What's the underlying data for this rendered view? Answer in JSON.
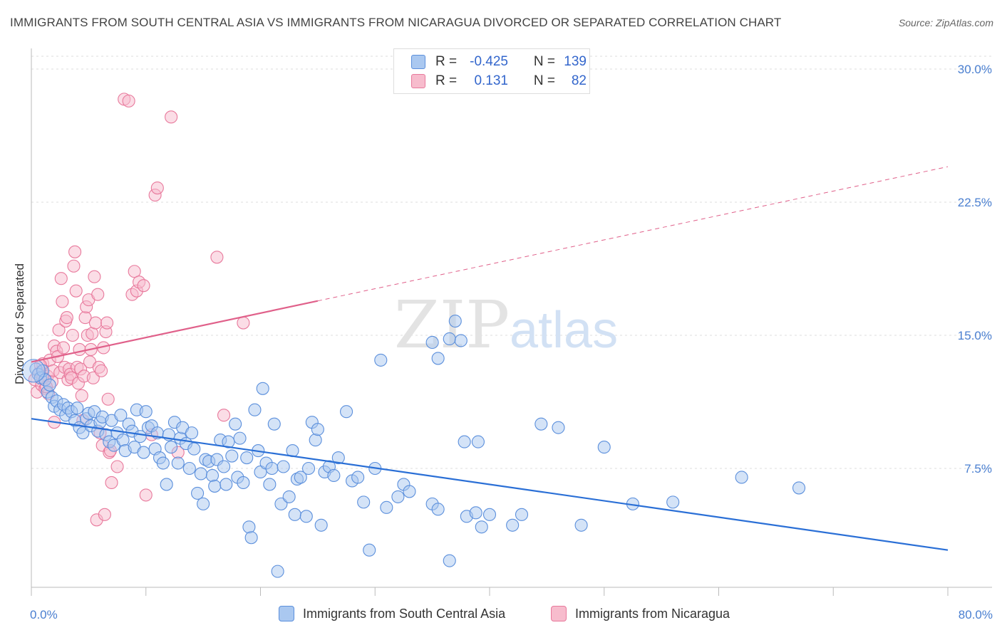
{
  "header": {
    "title": "IMMIGRANTS FROM SOUTH CENTRAL ASIA VS IMMIGRANTS FROM NICARAGUA DIVORCED OR SEPARATED CORRELATION CHART",
    "source": "Source: ZipAtlas.com"
  },
  "watermark": {
    "zip": "ZIP",
    "atlas": "atlas"
  },
  "legend_top": {
    "rows": [
      {
        "r_label": "R =",
        "r_value": "-0.425",
        "n_label": "N =",
        "n_value": "139"
      },
      {
        "r_label": "R =",
        "r_value": "0.131",
        "n_label": "N =",
        "n_value": "82"
      }
    ]
  },
  "legend_bottom": {
    "items": [
      {
        "label": "Immigrants from South Central Asia"
      },
      {
        "label": "Immigrants from Nicaragua"
      }
    ]
  },
  "colors": {
    "blue_fill": "#aac8f0",
    "blue_stroke": "#5b8fdc",
    "blue_line": "#2a6fd6",
    "pink_fill": "#f7bccd",
    "pink_stroke": "#e8799c",
    "pink_line": "#e0608a",
    "grid": "#dcdcdc",
    "tick_text": "#4a7fd0"
  },
  "chart_data": {
    "type": "scatter",
    "title": "IMMIGRANTS FROM SOUTH CENTRAL ASIA VS IMMIGRANTS FROM NICARAGUA DIVORCED OR SEPARATED CORRELATION CHART",
    "xlabel": "",
    "ylabel": "Divorced or Separated",
    "xlim": [
      0,
      80
    ],
    "ylim": [
      0,
      31
    ],
    "x_tick_labels": [
      "0.0%",
      "80.0%"
    ],
    "y_ticks": [
      7.5,
      15.0,
      22.5,
      30.0
    ],
    "y_tick_labels": [
      "7.5%",
      "15.0%",
      "22.5%",
      "30.0%"
    ],
    "grid": true,
    "legend_position": "top-center",
    "series": [
      {
        "name": "Immigrants from South Central Asia",
        "r": -0.425,
        "n": 139,
        "trend": {
          "x": [
            0,
            80
          ],
          "y": [
            10.3,
            2.9
          ],
          "dashed_from_x": null
        },
        "points": [
          [
            0.4,
            13.1
          ],
          [
            0.6,
            12.8
          ],
          [
            0.8,
            12.6
          ],
          [
            1.0,
            13.0
          ],
          [
            1.2,
            12.5
          ],
          [
            1.4,
            11.8
          ],
          [
            1.6,
            12.2
          ],
          [
            1.8,
            11.5
          ],
          [
            2.0,
            11.0
          ],
          [
            2.2,
            11.3
          ],
          [
            2.5,
            10.8
          ],
          [
            2.8,
            11.1
          ],
          [
            3.0,
            10.5
          ],
          [
            3.2,
            10.9
          ],
          [
            3.5,
            10.7
          ],
          [
            3.8,
            10.2
          ],
          [
            4.0,
            10.9
          ],
          [
            4.2,
            9.8
          ],
          [
            4.5,
            9.5
          ],
          [
            4.8,
            10.3
          ],
          [
            5.0,
            10.6
          ],
          [
            5.2,
            9.9
          ],
          [
            5.5,
            10.7
          ],
          [
            5.8,
            9.6
          ],
          [
            6.0,
            10.1
          ],
          [
            6.2,
            10.4
          ],
          [
            6.5,
            9.4
          ],
          [
            6.8,
            9.0
          ],
          [
            7.0,
            10.2
          ],
          [
            7.2,
            8.8
          ],
          [
            7.5,
            9.5
          ],
          [
            7.8,
            10.5
          ],
          [
            8.0,
            9.1
          ],
          [
            8.2,
            8.5
          ],
          [
            8.5,
            10.0
          ],
          [
            8.8,
            9.6
          ],
          [
            9.0,
            8.7
          ],
          [
            9.2,
            10.8
          ],
          [
            9.5,
            9.3
          ],
          [
            9.8,
            8.4
          ],
          [
            10.0,
            10.7
          ],
          [
            10.2,
            9.8
          ],
          [
            10.5,
            9.9
          ],
          [
            10.8,
            8.6
          ],
          [
            11.0,
            9.5
          ],
          [
            11.2,
            8.1
          ],
          [
            11.5,
            7.8
          ],
          [
            11.8,
            6.6
          ],
          [
            12.0,
            9.4
          ],
          [
            12.2,
            8.7
          ],
          [
            12.5,
            10.1
          ],
          [
            12.8,
            7.8
          ],
          [
            13.0,
            9.2
          ],
          [
            13.2,
            9.8
          ],
          [
            13.5,
            8.9
          ],
          [
            13.8,
            7.5
          ],
          [
            14.0,
            9.5
          ],
          [
            14.2,
            8.6
          ],
          [
            14.5,
            6.1
          ],
          [
            14.8,
            7.2
          ],
          [
            15.0,
            5.5
          ],
          [
            15.2,
            8.0
          ],
          [
            15.5,
            7.9
          ],
          [
            15.8,
            7.1
          ],
          [
            16.0,
            6.5
          ],
          [
            16.2,
            8.0
          ],
          [
            16.5,
            9.1
          ],
          [
            16.8,
            7.6
          ],
          [
            17.0,
            6.6
          ],
          [
            17.2,
            9.0
          ],
          [
            17.5,
            8.2
          ],
          [
            17.8,
            10.0
          ],
          [
            18.0,
            7.0
          ],
          [
            18.2,
            9.2
          ],
          [
            18.5,
            6.7
          ],
          [
            18.8,
            8.1
          ],
          [
            19.0,
            4.2
          ],
          [
            19.2,
            3.6
          ],
          [
            19.5,
            10.8
          ],
          [
            19.8,
            8.5
          ],
          [
            20.0,
            7.3
          ],
          [
            20.2,
            12.0
          ],
          [
            20.5,
            7.8
          ],
          [
            20.8,
            6.6
          ],
          [
            21.0,
            7.5
          ],
          [
            21.2,
            10.0
          ],
          [
            21.5,
            1.7
          ],
          [
            21.8,
            5.5
          ],
          [
            22.0,
            7.6
          ],
          [
            22.5,
            5.9
          ],
          [
            22.8,
            8.5
          ],
          [
            23.0,
            4.9
          ],
          [
            23.2,
            6.9
          ],
          [
            23.5,
            7.0
          ],
          [
            24.0,
            4.8
          ],
          [
            24.2,
            7.5
          ],
          [
            24.5,
            10.1
          ],
          [
            24.8,
            9.1
          ],
          [
            25.0,
            9.7
          ],
          [
            25.3,
            4.3
          ],
          [
            25.6,
            7.3
          ],
          [
            26.0,
            7.6
          ],
          [
            26.4,
            7.1
          ],
          [
            26.8,
            8.1
          ],
          [
            27.5,
            10.7
          ],
          [
            28.0,
            6.8
          ],
          [
            28.5,
            7.0
          ],
          [
            29.0,
            5.6
          ],
          [
            29.5,
            2.9
          ],
          [
            30.0,
            7.5
          ],
          [
            30.5,
            13.6
          ],
          [
            31.0,
            5.3
          ],
          [
            32.0,
            5.9
          ],
          [
            32.5,
            6.6
          ],
          [
            33.0,
            6.2
          ],
          [
            35.0,
            5.5
          ],
          [
            35.5,
            5.2
          ],
          [
            35.0,
            14.6
          ],
          [
            35.5,
            13.7
          ],
          [
            36.5,
            14.8
          ],
          [
            37.0,
            15.8
          ],
          [
            37.5,
            14.7
          ],
          [
            36.5,
            2.3
          ],
          [
            37.8,
            9.0
          ],
          [
            38.0,
            4.8
          ],
          [
            38.8,
            5.0
          ],
          [
            39.0,
            9.0
          ],
          [
            39.3,
            4.2
          ],
          [
            40.0,
            4.9
          ],
          [
            42.0,
            4.3
          ],
          [
            42.8,
            4.9
          ],
          [
            44.5,
            10.0
          ],
          [
            46.0,
            9.8
          ],
          [
            48.0,
            4.3
          ],
          [
            50.0,
            8.7
          ],
          [
            52.5,
            5.5
          ],
          [
            56.0,
            5.6
          ],
          [
            62.0,
            7.0
          ],
          [
            67.0,
            6.4
          ]
        ]
      },
      {
        "name": "Immigrants from Nicaragua",
        "r": 0.131,
        "n": 82,
        "trend": {
          "x": [
            0,
            80
          ],
          "y": [
            13.5,
            24.5
          ],
          "solid_until_x": 25
        },
        "points": [
          [
            0.3,
            12.5
          ],
          [
            0.5,
            11.8
          ],
          [
            0.7,
            12.9
          ],
          [
            0.9,
            12.2
          ],
          [
            1.0,
            13.4
          ],
          [
            1.2,
            12.0
          ],
          [
            1.4,
            12.7
          ],
          [
            1.5,
            11.7
          ],
          [
            1.6,
            13.6
          ],
          [
            1.8,
            12.4
          ],
          [
            1.9,
            13.0
          ],
          [
            2.0,
            14.4
          ],
          [
            2.2,
            14.1
          ],
          [
            2.3,
            13.8
          ],
          [
            2.4,
            15.3
          ],
          [
            2.5,
            12.9
          ],
          [
            2.6,
            18.2
          ],
          [
            2.7,
            16.9
          ],
          [
            2.8,
            14.3
          ],
          [
            2.9,
            13.2
          ],
          [
            3.0,
            15.8
          ],
          [
            3.1,
            16.0
          ],
          [
            3.2,
            12.5
          ],
          [
            3.3,
            13.1
          ],
          [
            3.4,
            12.8
          ],
          [
            3.5,
            12.6
          ],
          [
            3.6,
            15.0
          ],
          [
            3.7,
            18.9
          ],
          [
            3.8,
            19.7
          ],
          [
            3.9,
            17.5
          ],
          [
            4.0,
            13.2
          ],
          [
            4.1,
            12.3
          ],
          [
            4.2,
            14.2
          ],
          [
            4.3,
            13.1
          ],
          [
            4.4,
            11.6
          ],
          [
            4.5,
            10.2
          ],
          [
            4.6,
            12.7
          ],
          [
            4.7,
            16.0
          ],
          [
            4.8,
            16.6
          ],
          [
            4.9,
            15.0
          ],
          [
            5.0,
            17.0
          ],
          [
            5.1,
            13.5
          ],
          [
            5.2,
            14.2
          ],
          [
            5.3,
            15.1
          ],
          [
            5.4,
            12.6
          ],
          [
            5.5,
            18.3
          ],
          [
            5.6,
            15.7
          ],
          [
            5.7,
            4.6
          ],
          [
            5.8,
            17.3
          ],
          [
            5.9,
            13.2
          ],
          [
            6.0,
            9.5
          ],
          [
            6.1,
            13.0
          ],
          [
            6.2,
            8.8
          ],
          [
            6.3,
            14.3
          ],
          [
            6.4,
            4.9
          ],
          [
            6.5,
            15.2
          ],
          [
            6.6,
            15.7
          ],
          [
            6.7,
            11.4
          ],
          [
            6.8,
            8.4
          ],
          [
            6.9,
            8.5
          ],
          [
            7.0,
            6.7
          ],
          [
            7.5,
            7.6
          ],
          [
            8.1,
            28.3
          ],
          [
            8.5,
            28.2
          ],
          [
            8.8,
            17.3
          ],
          [
            9.0,
            18.6
          ],
          [
            9.2,
            17.5
          ],
          [
            9.4,
            18.0
          ],
          [
            9.8,
            17.8
          ],
          [
            10.0,
            6.0
          ],
          [
            10.5,
            9.4
          ],
          [
            10.8,
            22.9
          ],
          [
            11.0,
            23.3
          ],
          [
            12.2,
            27.3
          ],
          [
            12.8,
            8.4
          ],
          [
            16.2,
            19.4
          ],
          [
            16.8,
            10.5
          ],
          [
            18.5,
            15.7
          ],
          [
            1.0,
            12.6
          ],
          [
            2.0,
            10.1
          ],
          [
            0.8,
            13.3
          ],
          [
            1.3,
            12.1
          ]
        ]
      }
    ]
  }
}
